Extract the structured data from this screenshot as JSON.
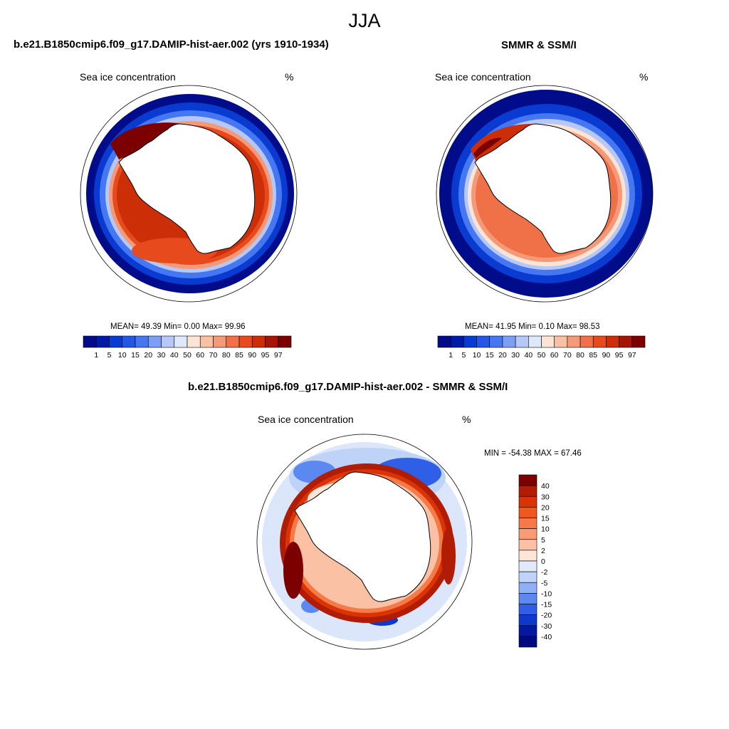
{
  "figure": {
    "season": "JJA"
  },
  "panels": [
    {
      "title": "b.e21.B1850cmip6.f09_g17.DAMIP-hist-aer.002 (yrs 1910-1934)",
      "field_label": "Sea ice concentration",
      "units": "%",
      "stats_text": "MEAN=  49.39  Min=   0.00  Max=  99.96"
    },
    {
      "title": "SMMR & SSM/I",
      "field_label": "Sea ice concentration",
      "units": "%",
      "stats_text": "MEAN=  41.95  Min=   0.10  Max=  98.53"
    },
    {
      "title": "b.e21.B1850cmip6.f09_g17.DAMIP-hist-aer.002 - SMMR & SSM/I",
      "field_label": "Sea ice concentration",
      "units": "%",
      "stats_text": "MIN = -54.38 MAX =  67.46"
    }
  ],
  "colorbars": {
    "concentration": {
      "levels": [
        "1",
        "5",
        "10",
        "15",
        "20",
        "30",
        "40",
        "50",
        "60",
        "70",
        "80",
        "85",
        "90",
        "95",
        "97"
      ],
      "colors": [
        "#000c8a",
        "#001aa8",
        "#0a3bd0",
        "#2457e6",
        "#4677f2",
        "#7c9ef5",
        "#b5c8f7",
        "#dde8fa",
        "#fde4d4",
        "#f9c1a4",
        "#f59a78",
        "#f07048",
        "#e74a1c",
        "#cc2e08",
        "#a51503",
        "#7c0000"
      ]
    },
    "difference": {
      "levels": [
        "40",
        "30",
        "20",
        "15",
        "10",
        "5",
        "2",
        "0",
        "-2",
        "-5",
        "-10",
        "-15",
        "-20",
        "-30",
        "-40"
      ],
      "colors": [
        "#7c0000",
        "#b11c05",
        "#d93306",
        "#f0581e",
        "#f57a47",
        "#f89c75",
        "#fac1a5",
        "#fde5d7",
        "#e1eafb",
        "#bfd2f8",
        "#8fb0f5",
        "#5b89f0",
        "#2f5fe6",
        "#0f39cc",
        "#0419a3",
        "#000a80"
      ]
    }
  }
}
